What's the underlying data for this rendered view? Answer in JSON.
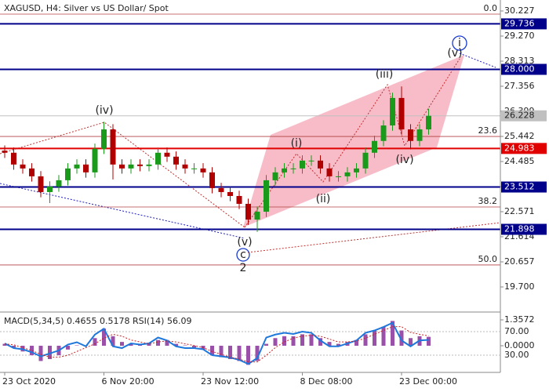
{
  "chart_data": {
    "type": "candlestick",
    "title": "XAGUSD, H4:  Silver vs US Dollar/ Spot",
    "categories": [
      "23 Oct 2020",
      null,
      null,
      null,
      null,
      null,
      null,
      null,
      null,
      null,
      null,
      "6 Nov 20:00",
      null,
      null,
      null,
      null,
      null,
      null,
      null,
      null,
      null,
      null,
      "23 Nov 12:00",
      null,
      null,
      null,
      null,
      null,
      null,
      null,
      null,
      null,
      null,
      "8 Dec 08:00",
      null,
      null,
      null,
      null,
      null,
      null,
      null,
      null,
      null,
      null,
      "23 Dec 00:00",
      null,
      null,
      null
    ],
    "open": [
      24.9,
      24.82,
      24.37,
      24.22,
      23.92,
      23.32,
      23.53,
      23.77,
      24.22,
      24.37,
      24.07,
      24.97,
      25.71,
      24.37,
      24.22,
      24.37,
      24.31,
      24.37,
      24.82,
      24.67,
      24.37,
      24.22,
      24.22,
      24.07,
      23.47,
      23.32,
      23.17,
      22.87,
      22.27,
      22.57,
      23.77,
      24.07,
      24.22,
      24.22,
      24.52,
      24.52,
      24.22,
      23.92,
      23.92,
      24.07,
      24.22,
      24.82,
      25.27,
      25.86,
      26.91,
      25.71,
      25.27,
      25.71
    ],
    "high": [
      25.1,
      25.02,
      24.57,
      24.42,
      24.12,
      23.73,
      23.97,
      24.42,
      24.57,
      24.57,
      25.17,
      26.0,
      25.91,
      24.57,
      24.57,
      24.57,
      24.57,
      25.02,
      25.02,
      24.87,
      24.57,
      24.42,
      24.42,
      24.27,
      23.67,
      23.52,
      23.37,
      23.07,
      22.77,
      23.97,
      24.27,
      24.42,
      24.42,
      24.72,
      24.72,
      24.72,
      24.42,
      24.12,
      24.27,
      24.42,
      25.02,
      25.47,
      26.06,
      27.11,
      27.35,
      25.91,
      25.91,
      26.5
    ],
    "low": [
      24.62,
      24.17,
      24.02,
      23.72,
      23.12,
      22.9,
      23.33,
      23.57,
      24.02,
      23.87,
      23.87,
      24.77,
      23.8,
      24.02,
      24.02,
      24.11,
      24.11,
      24.17,
      24.47,
      24.17,
      24.02,
      24.02,
      23.87,
      23.27,
      23.12,
      22.97,
      22.67,
      22.07,
      21.8,
      22.37,
      23.57,
      23.87,
      24.02,
      24.02,
      24.32,
      24.02,
      23.72,
      23.72,
      23.72,
      23.87,
      24.02,
      24.62,
      25.07,
      25.66,
      25.51,
      24.95,
      25.07,
      25.51
    ],
    "close": [
      24.82,
      24.37,
      24.22,
      23.92,
      23.32,
      23.53,
      23.77,
      24.22,
      24.37,
      24.07,
      24.97,
      25.71,
      24.37,
      24.22,
      24.37,
      24.31,
      24.37,
      24.82,
      24.67,
      24.37,
      24.22,
      24.22,
      24.07,
      23.47,
      23.32,
      23.17,
      22.87,
      22.27,
      22.57,
      23.77,
      24.07,
      24.22,
      24.22,
      24.52,
      24.52,
      24.22,
      23.92,
      23.92,
      24.07,
      24.22,
      24.82,
      25.27,
      25.86,
      26.91,
      25.71,
      25.27,
      25.71,
      26.228
    ],
    "up_color": "#1a9a1a",
    "down_color": "#b00000",
    "ylim": [
      18.743,
      30.646
    ],
    "yticks": [
      30.227,
      {
        "value": 29.27,
        "label": "29.270"
      },
      28.313,
      27.356,
      26.399,
      25.442,
      24.485,
      23.528,
      22.571,
      21.614,
      20.657,
      {
        "value": 19.7,
        "label": "19.700"
      }
    ],
    "fib_levels": [
      {
        "label": "0.0",
        "value": 30.108
      },
      {
        "label": "23.6",
        "value": 25.44
      },
      {
        "label": "38.2",
        "value": 22.75
      },
      {
        "label": "50.0",
        "value": 20.54
      }
    ],
    "fib_color": "#b04040",
    "levels": [
      {
        "value": 29.736,
        "color": "#00008b"
      },
      {
        "value": 28,
        "label": "28.000",
        "color": "#00008b"
      },
      {
        "value": 24.983,
        "color": "#e00000"
      },
      {
        "value": 23.512,
        "color": "#00008b"
      },
      {
        "value": 21.898,
        "color": "#00008b"
      }
    ],
    "current_price": {
      "value": 26.228,
      "color": "#c0c0c0"
    },
    "wave_labels": [
      "(iv)",
      "(v)",
      "c",
      "2",
      "(i)",
      "(ii)",
      "(iii)",
      "(iv)",
      "(v)",
      "i"
    ],
    "indicator": {
      "title": "MACD(5,34,5) 0.4655 0.5178 RSI(14) 56.09",
      "histogram": [
        0.1,
        -0.1,
        -0.3,
        -0.5,
        -0.8,
        -0.7,
        -0.5,
        -0.2,
        0.02,
        0.02,
        0.4,
        0.9,
        0.5,
        0.2,
        0.1,
        0.1,
        0.1,
        0.3,
        0.3,
        0.1,
        0.02,
        -0.1,
        -0.2,
        -0.5,
        -0.6,
        -0.7,
        -0.8,
        -1.0,
        -0.8,
        0.1,
        0.4,
        0.5,
        0.5,
        0.6,
        0.6,
        0.4,
        0.2,
        0.1,
        0.2,
        0.3,
        0.6,
        0.8,
        1.0,
        1.3,
        0.8,
        0.4,
        0.5,
        0.4655
      ],
      "signal": [
        0.1,
        0.05,
        -0.1,
        -0.25,
        -0.45,
        -0.6,
        -0.6,
        -0.5,
        -0.3,
        -0.1,
        0.1,
        0.4,
        0.6,
        0.5,
        0.3,
        0.2,
        0.1,
        0.2,
        0.25,
        0.2,
        0.1,
        0.01,
        -0.1,
        -0.3,
        -0.45,
        -0.6,
        -0.7,
        -0.85,
        -0.85,
        -0.5,
        -0.1,
        0.2,
        0.4,
        0.5,
        0.55,
        0.5,
        0.35,
        0.2,
        0.2,
        0.25,
        0.4,
        0.6,
        0.8,
        1.0,
        1.0,
        0.7,
        0.6,
        0.5178
      ],
      "rsi": [
        50,
        42,
        40,
        35,
        28,
        33,
        38,
        48,
        52,
        45,
        65,
        75,
        45,
        42,
        50,
        48,
        50,
        60,
        55,
        45,
        42,
        42,
        40,
        30,
        28,
        26,
        22,
        15,
        25,
        60,
        65,
        68,
        66,
        70,
        68,
        55,
        45,
        45,
        50,
        55,
        68,
        72,
        78,
        85,
        55,
        45,
        55,
        56.09
      ],
      "histogram_color": "#9a4fa8",
      "signal_color": "#d02020",
      "rsi_color": "#1e78dc",
      "ylim": [
        -1.275,
        1.686
      ],
      "yticks": [
        1.3572,
        {
          "value": 0,
          "label": "0.0000"
        }
      ],
      "y2lim": [
        4.7,
        100.7
      ],
      "y2ticks": [
        {
          "value": 70,
          "label": "70.00"
        },
        {
          "value": 30,
          "label": "30.00"
        }
      ]
    }
  }
}
